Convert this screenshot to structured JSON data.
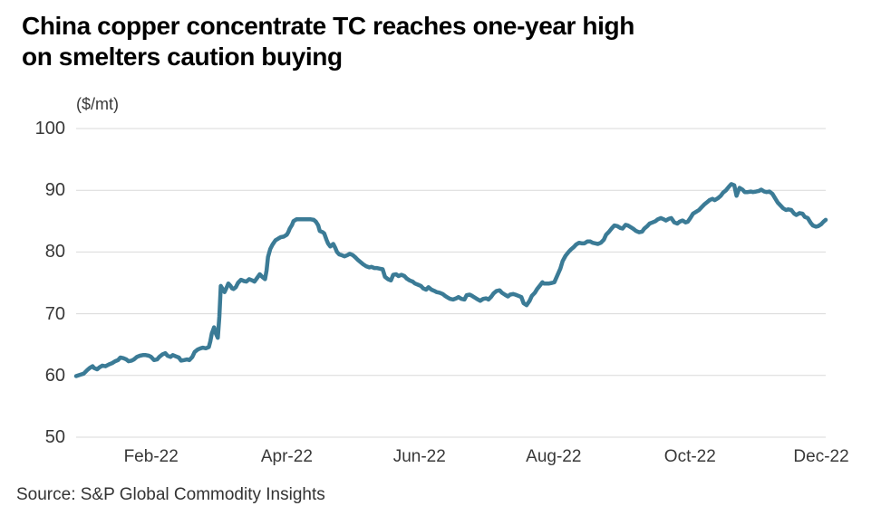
{
  "title": "China copper concentrate TC reaches one-year high\non smelters caution buying",
  "source": "Source: S&P Global Commodity Insights",
  "colors": {
    "line": "#3b7b96",
    "grid": "#d9d9d9",
    "title_text": "#000000",
    "axis_text": "#383838",
    "background": "#ffffff"
  },
  "chart_data": {
    "type": "line",
    "title": "China copper concentrate TC reaches one-year high on smelters caution buying",
    "ylabel": "($/mt)",
    "xlabel": "",
    "ylim": [
      50,
      100
    ],
    "yticks": [
      50,
      60,
      70,
      80,
      90,
      100
    ],
    "grid": "horizontal",
    "legend": "none",
    "xticks": [
      {
        "label": "Feb-22",
        "t": 0.1
      },
      {
        "label": "Apr-22",
        "t": 0.281
      },
      {
        "label": "Jun-22",
        "t": 0.458
      },
      {
        "label": "Aug-22",
        "t": 0.637
      },
      {
        "label": "Oct-22",
        "t": 0.819
      },
      {
        "label": "Dec-22",
        "t": 0.994
      }
    ],
    "t": [
      0.0,
      0.005,
      0.01,
      0.015,
      0.018,
      0.022,
      0.024,
      0.028,
      0.031,
      0.035,
      0.039,
      0.044,
      0.048,
      0.052,
      0.056,
      0.059,
      0.063,
      0.067,
      0.07,
      0.074,
      0.077,
      0.081,
      0.085,
      0.089,
      0.093,
      0.097,
      0.1,
      0.104,
      0.108,
      0.111,
      0.115,
      0.119,
      0.122,
      0.126,
      0.129,
      0.133,
      0.137,
      0.14,
      0.144,
      0.148,
      0.151,
      0.155,
      0.158,
      0.162,
      0.166,
      0.169,
      0.173,
      0.177,
      0.179,
      0.181,
      0.184,
      0.186,
      0.189,
      0.191,
      0.193,
      0.196,
      0.198,
      0.201,
      0.203,
      0.206,
      0.208,
      0.21,
      0.213,
      0.216,
      0.22,
      0.224,
      0.227,
      0.231,
      0.235,
      0.238,
      0.242,
      0.245,
      0.249,
      0.252,
      0.254,
      0.256,
      0.259,
      0.262,
      0.266,
      0.27,
      0.273,
      0.277,
      0.281,
      0.283,
      0.285,
      0.288,
      0.29,
      0.294,
      0.299,
      0.304,
      0.308,
      0.313,
      0.317,
      0.32,
      0.323,
      0.325,
      0.329,
      0.331,
      0.334,
      0.336,
      0.339,
      0.341,
      0.343,
      0.346,
      0.348,
      0.351,
      0.354,
      0.358,
      0.362,
      0.365,
      0.369,
      0.372,
      0.376,
      0.38,
      0.383,
      0.387,
      0.391,
      0.394,
      0.398,
      0.401,
      0.405,
      0.409,
      0.412,
      0.416,
      0.42,
      0.423,
      0.427,
      0.43,
      0.434,
      0.438,
      0.441,
      0.445,
      0.449,
      0.452,
      0.456,
      0.46,
      0.463,
      0.467,
      0.47,
      0.474,
      0.478,
      0.481,
      0.485,
      0.489,
      0.492,
      0.496,
      0.499,
      0.503,
      0.507,
      0.51,
      0.514,
      0.518,
      0.521,
      0.525,
      0.528,
      0.532,
      0.536,
      0.539,
      0.543,
      0.547,
      0.55,
      0.554,
      0.557,
      0.561,
      0.565,
      0.568,
      0.572,
      0.576,
      0.579,
      0.583,
      0.586,
      0.59,
      0.594,
      0.597,
      0.601,
      0.605,
      0.608,
      0.612,
      0.615,
      0.619,
      0.622,
      0.624,
      0.628,
      0.631,
      0.635,
      0.638,
      0.642,
      0.646,
      0.649,
      0.653,
      0.657,
      0.66,
      0.664,
      0.667,
      0.671,
      0.675,
      0.678,
      0.682,
      0.686,
      0.689,
      0.693,
      0.696,
      0.7,
      0.704,
      0.707,
      0.711,
      0.715,
      0.718,
      0.722,
      0.726,
      0.729,
      0.733,
      0.736,
      0.74,
      0.744,
      0.747,
      0.751,
      0.755,
      0.758,
      0.762,
      0.765,
      0.769,
      0.773,
      0.776,
      0.78,
      0.784,
      0.787,
      0.791,
      0.794,
      0.798,
      0.802,
      0.805,
      0.809,
      0.813,
      0.816,
      0.82,
      0.823,
      0.827,
      0.831,
      0.834,
      0.838,
      0.842,
      0.845,
      0.849,
      0.852,
      0.856,
      0.86,
      0.863,
      0.867,
      0.871,
      0.874,
      0.878,
      0.881,
      0.885,
      0.889,
      0.892,
      0.896,
      0.9,
      0.903,
      0.907,
      0.911,
      0.914,
      0.918,
      0.921,
      0.925,
      0.929,
      0.932,
      0.936,
      0.94,
      0.943,
      0.947,
      0.95,
      0.954,
      0.958,
      0.961,
      0.965,
      0.969,
      0.972,
      0.976,
      0.98,
      0.983,
      0.987,
      0.99,
      0.994,
      0.997,
      1.0
    ],
    "v": [
      59.9,
      60.1,
      60.3,
      60.9,
      61.2,
      61.5,
      61.2,
      61.0,
      61.3,
      61.6,
      61.5,
      61.8,
      62.0,
      62.3,
      62.5,
      62.9,
      62.8,
      62.6,
      62.3,
      62.4,
      62.6,
      63.0,
      63.2,
      63.3,
      63.3,
      63.2,
      63.0,
      62.5,
      62.6,
      63.0,
      63.4,
      63.6,
      63.2,
      63.0,
      63.3,
      63.1,
      62.9,
      62.4,
      62.5,
      62.6,
      62.5,
      63.0,
      63.8,
      64.2,
      64.4,
      64.5,
      64.4,
      64.6,
      65.5,
      66.8,
      67.8,
      66.9,
      66.1,
      69.5,
      74.5,
      73.9,
      73.5,
      74.3,
      74.9,
      74.5,
      74.1,
      74.0,
      74.3,
      75.0,
      75.5,
      75.3,
      75.2,
      75.6,
      75.4,
      75.2,
      75.9,
      76.4,
      75.9,
      75.6,
      77.0,
      79.2,
      80.5,
      81.2,
      81.9,
      82.2,
      82.4,
      82.5,
      82.8,
      83.2,
      83.8,
      84.4,
      85.0,
      85.3,
      85.3,
      85.3,
      85.3,
      85.3,
      85.2,
      84.9,
      84.3,
      83.4,
      83.2,
      83.0,
      82.0,
      81.4,
      80.9,
      81.1,
      81.3,
      80.6,
      80.0,
      79.6,
      79.5,
      79.3,
      79.5,
      79.7,
      79.5,
      79.2,
      78.7,
      78.3,
      78.0,
      77.7,
      77.5,
      77.6,
      77.4,
      77.4,
      77.3,
      77.2,
      76.0,
      75.6,
      75.4,
      76.3,
      76.4,
      76.1,
      76.3,
      76.1,
      75.7,
      75.4,
      75.2,
      74.9,
      74.7,
      74.5,
      74.1,
      73.9,
      74.3,
      73.9,
      73.7,
      73.5,
      73.4,
      73.2,
      72.9,
      72.6,
      72.4,
      72.3,
      72.5,
      72.7,
      72.4,
      72.3,
      73.0,
      73.1,
      72.9,
      72.6,
      72.3,
      72.1,
      72.4,
      72.5,
      72.3,
      72.8,
      73.3,
      73.7,
      73.8,
      73.4,
      73.1,
      72.8,
      73.1,
      73.2,
      73.1,
      72.9,
      72.7,
      71.7,
      71.4,
      72.1,
      72.9,
      73.4,
      74.0,
      74.6,
      75.1,
      74.9,
      74.9,
      74.9,
      75.0,
      75.1,
      76.2,
      77.3,
      78.5,
      79.4,
      80.0,
      80.4,
      80.8,
      81.2,
      81.5,
      81.4,
      81.4,
      81.7,
      81.7,
      81.5,
      81.4,
      81.3,
      81.5,
      82.0,
      82.8,
      83.3,
      83.9,
      84.3,
      84.2,
      83.9,
      83.8,
      84.4,
      84.3,
      84.0,
      83.7,
      83.4,
      83.2,
      83.3,
      83.8,
      84.2,
      84.6,
      84.8,
      85.0,
      85.3,
      85.5,
      85.3,
      85.1,
      85.4,
      85.5,
      84.8,
      84.6,
      84.9,
      85.1,
      84.8,
      84.9,
      85.6,
      86.2,
      86.5,
      86.8,
      87.2,
      87.7,
      88.1,
      88.4,
      88.6,
      88.4,
      88.7,
      89.1,
      89.6,
      90.0,
      90.6,
      91.0,
      90.8,
      89.1,
      90.4,
      90.1,
      89.7,
      89.7,
      89.8,
      89.7,
      89.8,
      89.9,
      90.1,
      89.8,
      89.7,
      89.8,
      89.4,
      88.8,
      88.0,
      87.5,
      87.1,
      86.8,
      86.9,
      86.8,
      86.2,
      86.0,
      86.3,
      86.2,
      85.7,
      85.5,
      84.7,
      84.3,
      84.1,
      84.2,
      84.5,
      84.9,
      85.2
    ]
  }
}
